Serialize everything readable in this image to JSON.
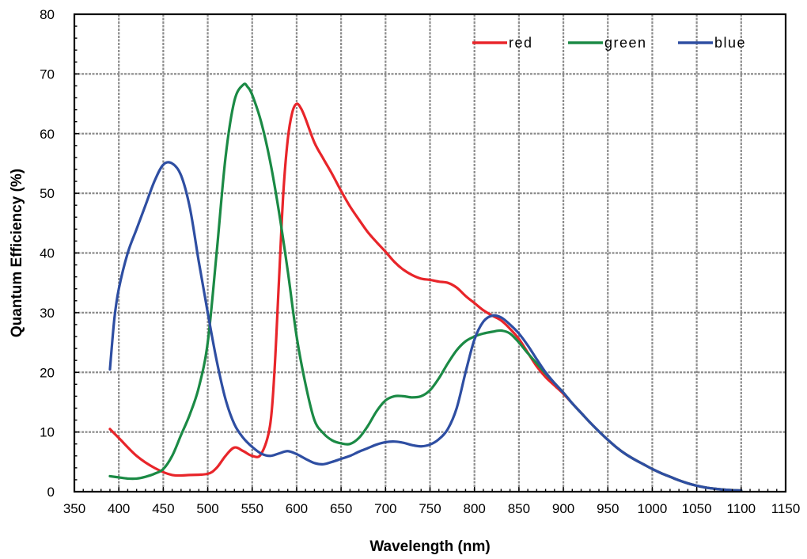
{
  "chart_data": {
    "type": "line",
    "title": "",
    "xlabel": "Wavelength (nm)",
    "ylabel": "Quantum Efficiency (%)",
    "xlim": [
      350,
      1150
    ],
    "ylim": [
      0,
      80
    ],
    "xticks": [
      350,
      400,
      450,
      500,
      550,
      600,
      650,
      700,
      750,
      800,
      850,
      900,
      950,
      1000,
      1050,
      1100,
      1150
    ],
    "yticks": [
      0,
      10,
      20,
      30,
      40,
      50,
      60,
      70,
      80
    ],
    "grid": true,
    "legend_position": "top-right",
    "series": [
      {
        "name": "red",
        "color": "#e8252a",
        "x": [
          390,
          400,
          420,
          440,
          460,
          480,
          500,
          510,
          520,
          530,
          540,
          550,
          560,
          570,
          575,
          580,
          585,
          590,
          595,
          600,
          605,
          610,
          620,
          630,
          640,
          650,
          660,
          670,
          680,
          690,
          700,
          710,
          720,
          730,
          740,
          750,
          760,
          770,
          780,
          790,
          800,
          810,
          820,
          830,
          840,
          850,
          860,
          870,
          880,
          890,
          900,
          910,
          920,
          930,
          940,
          950,
          960,
          970,
          980,
          990,
          1000,
          1010,
          1020,
          1030,
          1040,
          1050,
          1060,
          1070,
          1080,
          1090,
          1100
        ],
        "y": [
          10.5,
          9.0,
          6.0,
          4.0,
          2.8,
          2.8,
          3.0,
          4.0,
          6.0,
          7.4,
          6.8,
          6.0,
          6.3,
          11.0,
          20.0,
          35.0,
          50.0,
          59.0,
          63.5,
          65.0,
          64.2,
          62.5,
          58.5,
          55.8,
          53.2,
          50.4,
          47.8,
          45.6,
          43.5,
          41.8,
          40.2,
          38.5,
          37.2,
          36.3,
          35.7,
          35.5,
          35.2,
          35.0,
          34.2,
          32.8,
          31.6,
          30.4,
          29.5,
          28.7,
          27.3,
          25.6,
          23.3,
          21.0,
          19.2,
          17.8,
          16.4,
          14.8,
          13.2,
          11.6,
          10.1,
          8.7,
          7.4,
          6.3,
          5.4,
          4.6,
          3.8,
          3.1,
          2.5,
          1.9,
          1.4,
          1.0,
          0.7,
          0.5,
          0.35,
          0.25,
          0.2
        ]
      },
      {
        "name": "green",
        "color": "#1b8a45",
        "x": [
          390,
          400,
          410,
          420,
          430,
          440,
          450,
          460,
          470,
          480,
          490,
          500,
          510,
          520,
          530,
          540,
          545,
          550,
          560,
          570,
          580,
          590,
          600,
          610,
          620,
          630,
          640,
          650,
          660,
          670,
          680,
          690,
          700,
          710,
          720,
          730,
          740,
          750,
          760,
          770,
          780,
          790,
          800,
          810,
          820,
          830,
          840,
          850,
          860,
          870,
          880,
          890,
          900,
          910,
          920,
          930,
          940,
          950,
          960,
          970,
          980,
          990,
          1000,
          1010,
          1020,
          1030,
          1040,
          1050,
          1060,
          1070,
          1080,
          1090,
          1100
        ],
        "y": [
          2.6,
          2.4,
          2.2,
          2.2,
          2.5,
          3.0,
          3.8,
          6.0,
          9.5,
          13.0,
          17.5,
          25.0,
          40.0,
          56.0,
          65.5,
          68.2,
          67.8,
          66.5,
          62.0,
          55.5,
          47.0,
          37.0,
          26.0,
          18.0,
          12.0,
          9.8,
          8.6,
          8.1,
          8.0,
          9.0,
          11.0,
          13.5,
          15.3,
          16.0,
          16.0,
          15.8,
          16.0,
          17.0,
          19.0,
          21.5,
          23.7,
          25.2,
          26.0,
          26.5,
          26.8,
          27.0,
          26.5,
          25.0,
          23.2,
          21.5,
          19.8,
          18.2,
          16.6,
          14.8,
          13.2,
          11.6,
          10.1,
          8.7,
          7.4,
          6.3,
          5.4,
          4.6,
          3.8,
          3.1,
          2.5,
          1.9,
          1.4,
          1.0,
          0.7,
          0.5,
          0.35,
          0.25,
          0.2
        ]
      },
      {
        "name": "blue",
        "color": "#2e4ea2",
        "x": [
          390,
          395,
          400,
          410,
          420,
          430,
          440,
          450,
          460,
          470,
          480,
          490,
          500,
          510,
          520,
          530,
          540,
          550,
          560,
          570,
          580,
          590,
          600,
          610,
          620,
          630,
          640,
          650,
          660,
          670,
          680,
          690,
          700,
          710,
          720,
          730,
          740,
          750,
          760,
          770,
          780,
          790,
          800,
          810,
          820,
          830,
          840,
          850,
          860,
          870,
          880,
          890,
          900,
          910,
          920,
          930,
          940,
          950,
          960,
          970,
          980,
          990,
          1000,
          1010,
          1020,
          1030,
          1040,
          1050,
          1060,
          1070,
          1080,
          1090,
          1100
        ],
        "y": [
          20.5,
          29.0,
          34.0,
          40.0,
          44.0,
          48.0,
          52.0,
          54.8,
          55.0,
          53.0,
          47.5,
          38.5,
          30.0,
          22.0,
          15.5,
          11.3,
          9.0,
          7.5,
          6.4,
          6.0,
          6.4,
          6.8,
          6.3,
          5.5,
          4.8,
          4.6,
          5.0,
          5.5,
          6.0,
          6.7,
          7.3,
          7.9,
          8.3,
          8.4,
          8.2,
          7.8,
          7.6,
          7.9,
          8.8,
          10.5,
          14.0,
          20.0,
          25.5,
          28.5,
          29.5,
          29.2,
          28.0,
          26.5,
          24.5,
          22.2,
          20.0,
          18.2,
          16.6,
          14.8,
          13.2,
          11.6,
          10.1,
          8.7,
          7.4,
          6.3,
          5.4,
          4.6,
          3.8,
          3.1,
          2.5,
          1.9,
          1.4,
          1.0,
          0.7,
          0.5,
          0.35,
          0.25,
          0.2
        ]
      }
    ]
  }
}
